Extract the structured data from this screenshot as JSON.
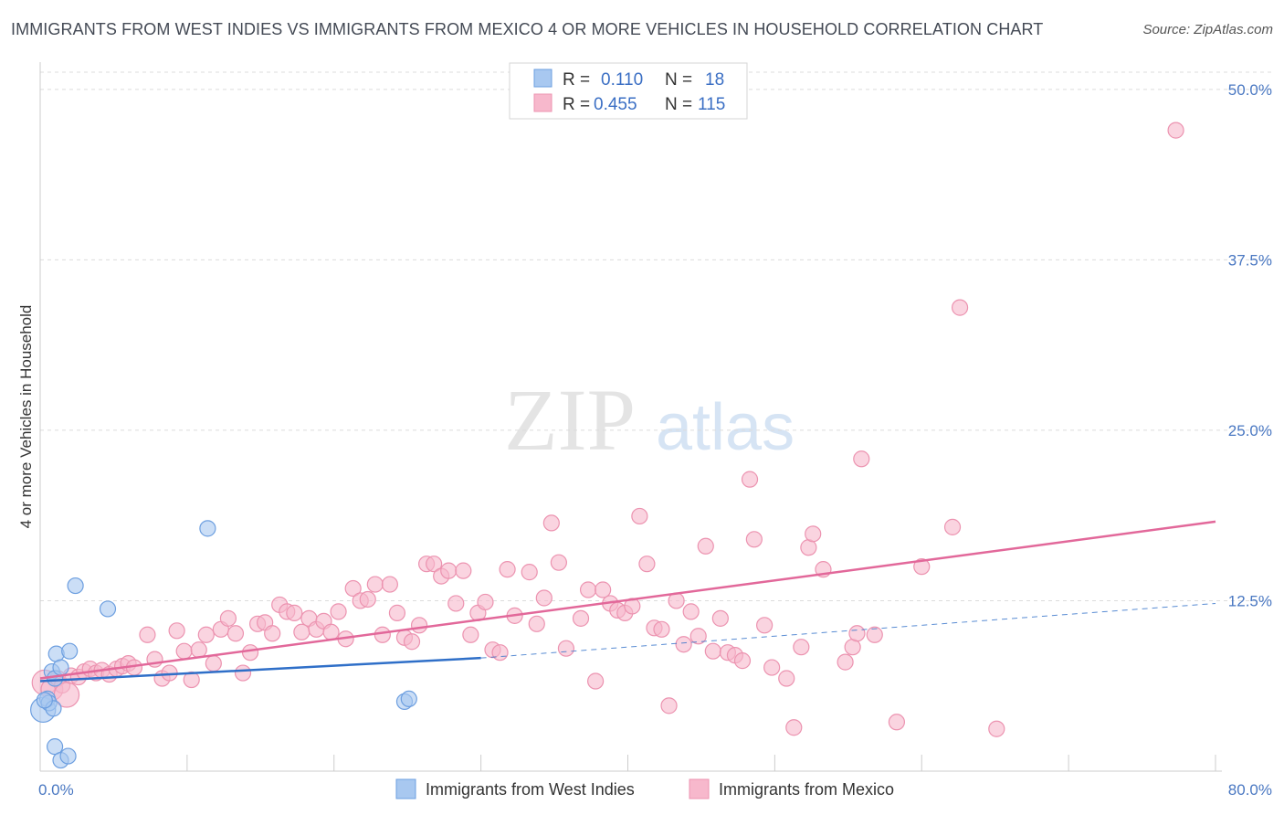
{
  "title": "IMMIGRANTS FROM WEST INDIES VS IMMIGRANTS FROM MEXICO 4 OR MORE VEHICLES IN HOUSEHOLD CORRELATION CHART",
  "source": "Source: ZipAtlas.com",
  "watermark": {
    "zip": "ZIP",
    "atlas": "atlas"
  },
  "colors": {
    "west_indies_fill": "#a8c8f0",
    "west_indies_stroke": "#6d9fe0",
    "west_indies_line": "#2f6fc8",
    "mexico_fill": "#f7b8cc",
    "mexico_stroke": "#ec93b0",
    "mexico_line": "#e2689a",
    "tick_text": "#4a78c2",
    "grid": "#dcdcdc"
  },
  "legend": {
    "r_label": "R =",
    "n_label": "N =",
    "rows": [
      {
        "series": "west_indies",
        "r": "0.110",
        "n": "18"
      },
      {
        "series": "mexico",
        "r": "0.455",
        "n": "115"
      }
    ]
  },
  "bottom_legend": [
    {
      "series": "west_indies",
      "label": "Immigrants from West Indies"
    },
    {
      "series": "mexico",
      "label": "Immigrants from Mexico"
    }
  ],
  "chart_data": {
    "type": "scatter",
    "title": "IMMIGRANTS FROM WEST INDIES VS IMMIGRANTS FROM MEXICO 4 OR MORE VEHICLES IN HOUSEHOLD CORRELATION CHART",
    "xlabel": "",
    "ylabel": "4 or more Vehicles in Household",
    "xlim": [
      0,
      80
    ],
    "ylim": [
      0,
      52
    ],
    "x_tick_labels": [
      {
        "value": 0,
        "label": "0.0%"
      },
      {
        "value": 80,
        "label": "80.0%"
      }
    ],
    "y_tick_labels": [
      {
        "value": 12.5,
        "label": "12.5%"
      },
      {
        "value": 25,
        "label": "25.0%"
      },
      {
        "value": 37.5,
        "label": "37.5%"
      },
      {
        "value": 50,
        "label": "50.0%"
      }
    ],
    "legend_position": "top-center",
    "grid": true,
    "series": [
      {
        "name": "Immigrants from West Indies",
        "key": "west_indies",
        "r": 0.11,
        "n": 18,
        "trend": {
          "x0": 0,
          "y0": 6.6,
          "x1": 30,
          "y1": 8.3,
          "extend_dashed_to": 80,
          "y_at_end": 12.3
        },
        "points": [
          [
            0.2,
            4.5,
            1.6
          ],
          [
            0.5,
            5.3,
            1
          ],
          [
            0.6,
            5.0,
            1
          ],
          [
            0.8,
            7.3,
            1
          ],
          [
            0.9,
            4.6,
            1
          ],
          [
            1.0,
            6.8,
            1
          ],
          [
            1.0,
            1.8,
            1
          ],
          [
            1.1,
            8.6,
            1
          ],
          [
            1.4,
            0.8,
            1
          ],
          [
            1.4,
            7.6,
            1
          ],
          [
            1.9,
            1.1,
            1
          ],
          [
            2.0,
            8.8,
            1
          ],
          [
            2.4,
            13.6,
            1
          ],
          [
            4.6,
            11.9,
            1
          ],
          [
            11.4,
            17.8,
            1
          ],
          [
            24.8,
            5.1,
            1
          ],
          [
            25.1,
            5.3,
            1
          ],
          [
            0.3,
            5.2,
            1
          ]
        ]
      },
      {
        "name": "Immigrants from Mexico",
        "key": "mexico",
        "r": 0.455,
        "n": 115,
        "trend": {
          "x0": 0,
          "y0": 6.8,
          "x1": 80,
          "y1": 18.3
        },
        "points": [
          [
            0.3,
            6.5,
            1.6
          ],
          [
            0.8,
            6.0,
            1.4
          ],
          [
            1.2,
            6.8,
            1
          ],
          [
            1.5,
            6.3,
            1
          ],
          [
            1.8,
            5.6,
            1.6
          ],
          [
            2.1,
            7.0,
            1
          ],
          [
            2.6,
            6.9,
            1
          ],
          [
            3.0,
            7.3,
            1
          ],
          [
            3.4,
            7.5,
            1
          ],
          [
            3.8,
            7.2,
            1
          ],
          [
            4.2,
            7.4,
            1
          ],
          [
            4.7,
            7.1,
            1
          ],
          [
            5.2,
            7.5,
            1
          ],
          [
            5.6,
            7.7,
            1
          ],
          [
            6.0,
            7.9,
            1
          ],
          [
            6.4,
            7.6,
            1
          ],
          [
            7.3,
            10.0,
            1
          ],
          [
            7.8,
            8.2,
            1
          ],
          [
            8.3,
            6.8,
            1
          ],
          [
            8.8,
            7.2,
            1
          ],
          [
            9.3,
            10.3,
            1
          ],
          [
            9.8,
            8.8,
            1
          ],
          [
            10.3,
            6.7,
            1
          ],
          [
            10.8,
            8.9,
            1
          ],
          [
            11.3,
            10.0,
            1
          ],
          [
            11.8,
            7.9,
            1
          ],
          [
            12.3,
            10.4,
            1
          ],
          [
            12.8,
            11.2,
            1
          ],
          [
            13.3,
            10.1,
            1
          ],
          [
            13.8,
            7.2,
            1
          ],
          [
            14.3,
            8.7,
            1
          ],
          [
            14.8,
            10.8,
            1
          ],
          [
            15.3,
            10.9,
            1
          ],
          [
            15.8,
            10.1,
            1
          ],
          [
            16.3,
            12.2,
            1
          ],
          [
            16.8,
            11.7,
            1
          ],
          [
            17.3,
            11.6,
            1
          ],
          [
            17.8,
            10.2,
            1
          ],
          [
            18.3,
            11.2,
            1
          ],
          [
            18.8,
            10.4,
            1
          ],
          [
            19.3,
            11.0,
            1
          ],
          [
            19.8,
            10.2,
            1
          ],
          [
            20.3,
            11.7,
            1
          ],
          [
            20.8,
            9.7,
            1
          ],
          [
            21.3,
            13.4,
            1
          ],
          [
            21.8,
            12.5,
            1
          ],
          [
            22.3,
            12.6,
            1
          ],
          [
            22.8,
            13.7,
            1
          ],
          [
            23.3,
            10.0,
            1
          ],
          [
            23.8,
            13.7,
            1
          ],
          [
            24.3,
            11.6,
            1
          ],
          [
            24.8,
            9.8,
            1
          ],
          [
            25.3,
            9.5,
            1
          ],
          [
            25.8,
            10.7,
            1
          ],
          [
            26.3,
            15.2,
            1
          ],
          [
            26.8,
            15.2,
            1
          ],
          [
            27.3,
            14.3,
            1
          ],
          [
            27.8,
            14.7,
            1
          ],
          [
            28.3,
            12.3,
            1
          ],
          [
            28.8,
            14.7,
            1
          ],
          [
            29.3,
            10.0,
            1
          ],
          [
            29.8,
            11.6,
            1
          ],
          [
            30.3,
            12.4,
            1
          ],
          [
            30.8,
            8.9,
            1
          ],
          [
            31.3,
            8.7,
            1
          ],
          [
            31.8,
            14.8,
            1
          ],
          [
            32.3,
            11.4,
            1
          ],
          [
            33.3,
            14.6,
            1
          ],
          [
            33.8,
            10.8,
            1
          ],
          [
            34.3,
            12.7,
            1
          ],
          [
            34.8,
            18.2,
            1
          ],
          [
            35.3,
            15.3,
            1
          ],
          [
            35.8,
            9.0,
            1
          ],
          [
            36.8,
            11.2,
            1
          ],
          [
            37.3,
            13.3,
            1
          ],
          [
            37.8,
            6.6,
            1
          ],
          [
            38.3,
            13.3,
            1
          ],
          [
            38.8,
            12.3,
            1
          ],
          [
            39.3,
            11.8,
            1
          ],
          [
            39.8,
            11.6,
            1
          ],
          [
            40.3,
            12.1,
            1
          ],
          [
            40.8,
            18.7,
            1
          ],
          [
            41.3,
            15.2,
            1
          ],
          [
            41.8,
            10.5,
            1
          ],
          [
            42.3,
            10.4,
            1
          ],
          [
            42.8,
            4.8,
            1
          ],
          [
            43.3,
            12.5,
            1
          ],
          [
            43.8,
            9.3,
            1
          ],
          [
            44.3,
            11.7,
            1
          ],
          [
            44.8,
            9.9,
            1
          ],
          [
            45.3,
            16.5,
            1
          ],
          [
            45.8,
            8.8,
            1
          ],
          [
            46.3,
            11.2,
            1
          ],
          [
            46.8,
            8.7,
            1
          ],
          [
            47.3,
            8.5,
            1
          ],
          [
            47.8,
            8.1,
            1
          ],
          [
            48.3,
            21.4,
            1
          ],
          [
            48.6,
            17.0,
            1
          ],
          [
            49.3,
            10.7,
            1
          ],
          [
            49.8,
            7.6,
            1
          ],
          [
            50.8,
            6.8,
            1
          ],
          [
            51.3,
            3.2,
            1
          ],
          [
            51.8,
            9.1,
            1
          ],
          [
            52.3,
            16.4,
            1
          ],
          [
            52.6,
            17.4,
            1
          ],
          [
            53.3,
            14.8,
            1
          ],
          [
            54.8,
            8.0,
            1
          ],
          [
            55.3,
            9.1,
            1
          ],
          [
            55.6,
            10.1,
            1
          ],
          [
            55.9,
            22.9,
            1
          ],
          [
            56.8,
            10.0,
            1
          ],
          [
            58.3,
            3.6,
            1
          ],
          [
            60.0,
            15.0,
            1
          ],
          [
            62.6,
            34.0,
            1
          ],
          [
            62.1,
            17.9,
            1
          ],
          [
            65.1,
            3.1,
            1
          ],
          [
            77.3,
            47.0,
            1
          ]
        ]
      }
    ]
  }
}
